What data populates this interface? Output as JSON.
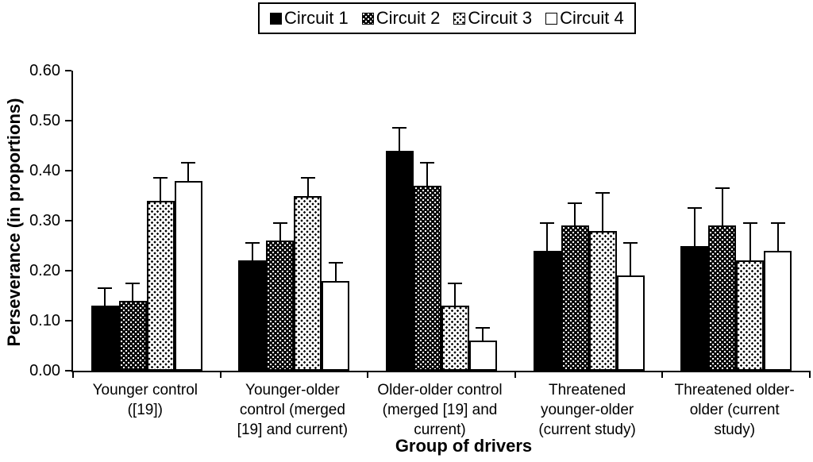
{
  "figure": {
    "background_color": "#ffffff",
    "foreground_color": "#000000"
  },
  "legend": {
    "items": [
      {
        "label": "Circuit 1",
        "pattern": "solid-black",
        "marker": "filled-square-icon"
      },
      {
        "label": "Circuit 2",
        "pattern": "white-dots-on-black",
        "marker": "dense-dotted-square-icon"
      },
      {
        "label": "Circuit 3",
        "pattern": "black-dots-on-white",
        "marker": "light-dotted-square-icon"
      },
      {
        "label": "Circuit 4",
        "pattern": "white",
        "marker": "open-square-icon"
      }
    ]
  },
  "chart_data": {
    "type": "bar",
    "title": "",
    "xlabel": "Group of drivers",
    "ylabel": "Perseverance (in proportions)",
    "ylim": [
      0,
      0.6
    ],
    "ytick_step": 0.1,
    "ytick_labels": [
      "0.00",
      "0.10",
      "0.20",
      "0.30",
      "0.40",
      "0.50",
      "0.60"
    ],
    "grid": false,
    "legend_position": "top-center",
    "error_bars": "upper-only",
    "categories": [
      "Younger control\n([19])",
      "Younger-older\ncontrol (merged\n[19] and current)",
      "Older-older control\n(merged [19] and\ncurrent)",
      "Threatened\nyounger-older\n(current study)",
      "Threatened older-\nolder (current\nstudy)"
    ],
    "series": [
      {
        "name": "Circuit 1",
        "pattern": "solid-black",
        "values": [
          0.13,
          0.22,
          0.44,
          0.24,
          0.25
        ],
        "errors_upper": [
          0.04,
          0.04,
          0.05,
          0.06,
          0.08
        ]
      },
      {
        "name": "Circuit 2",
        "pattern": "white-dots-on-black",
        "values": [
          0.14,
          0.26,
          0.37,
          0.29,
          0.29
        ],
        "errors_upper": [
          0.04,
          0.04,
          0.05,
          0.05,
          0.08
        ]
      },
      {
        "name": "Circuit 3",
        "pattern": "black-dots-on-white",
        "values": [
          0.34,
          0.35,
          0.13,
          0.28,
          0.22
        ],
        "errors_upper": [
          0.05,
          0.04,
          0.05,
          0.08,
          0.08
        ]
      },
      {
        "name": "Circuit 4",
        "pattern": "white",
        "values": [
          0.38,
          0.18,
          0.06,
          0.19,
          0.24
        ],
        "errors_upper": [
          0.04,
          0.04,
          0.03,
          0.07,
          0.06
        ]
      }
    ]
  }
}
